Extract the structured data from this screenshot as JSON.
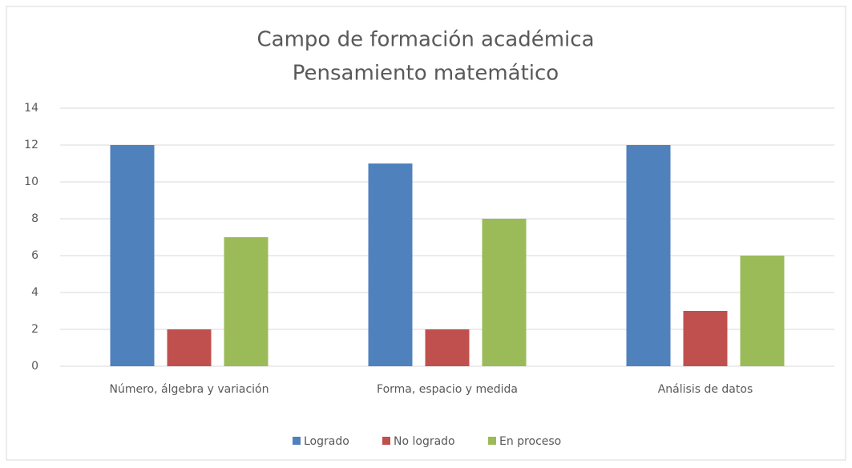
{
  "chart_data": {
    "type": "bar",
    "title": [
      "Campo de formación académica",
      "Pensamiento matemático"
    ],
    "categories": [
      "Número, álgebra y variación",
      "Forma, espacio y medida",
      "Análisis de datos"
    ],
    "series": [
      {
        "name": "Logrado",
        "color": "#4f81bd",
        "values": [
          12,
          11,
          12
        ]
      },
      {
        "name": "No logrado",
        "color": "#c0504d",
        "values": [
          2,
          2,
          3
        ]
      },
      {
        "name": "En proceso",
        "color": "#9bbb59",
        "values": [
          7,
          8,
          6
        ]
      }
    ],
    "ylim": [
      0,
      14
    ],
    "yticks": [
      0,
      2,
      4,
      6,
      8,
      10,
      12,
      14
    ],
    "grid": true,
    "legend": "bottom"
  }
}
